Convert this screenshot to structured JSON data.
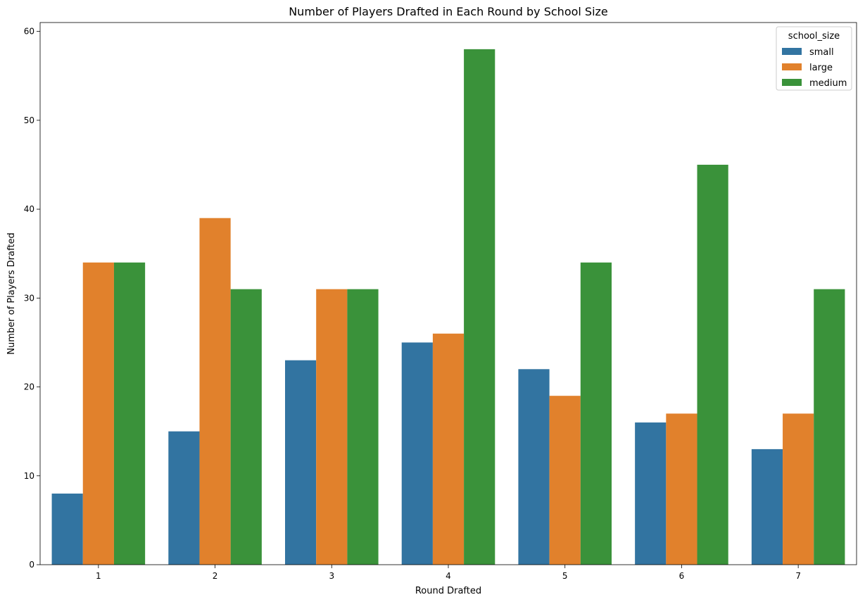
{
  "chart_data": {
    "type": "bar",
    "title": "Number of Players Drafted in Each Round by School Size",
    "xlabel": "Round Drafted",
    "ylabel": "Number of Players Drafted",
    "categories": [
      "1",
      "2",
      "3",
      "4",
      "5",
      "6",
      "7"
    ],
    "ylim": [
      0,
      61
    ],
    "yticks": [
      0,
      10,
      20,
      30,
      40,
      50,
      60
    ],
    "grid": false,
    "legend": {
      "title": "school_size",
      "placement": "top-right"
    },
    "series": [
      {
        "name": "small",
        "color": "#3274a1",
        "values": [
          8,
          15,
          23,
          25,
          22,
          16,
          13
        ]
      },
      {
        "name": "large",
        "color": "#e1812c",
        "values": [
          34,
          39,
          31,
          26,
          19,
          17,
          17
        ]
      },
      {
        "name": "medium",
        "color": "#3a923a",
        "values": [
          34,
          31,
          31,
          58,
          34,
          45,
          31
        ]
      }
    ]
  }
}
